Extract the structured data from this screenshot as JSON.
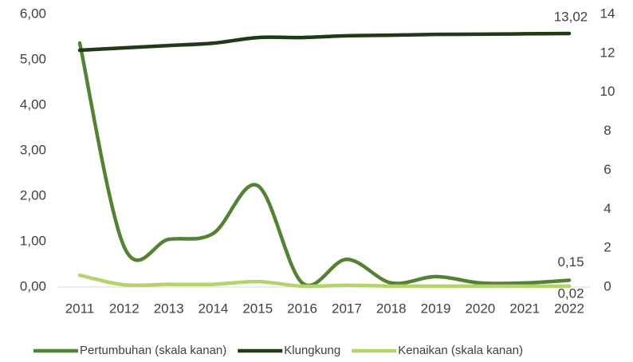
{
  "chart_data": {
    "type": "line",
    "categories": [
      "2011",
      "2012",
      "2013",
      "2014",
      "2015",
      "2016",
      "2017",
      "2018",
      "2019",
      "2020",
      "2021",
      "2022"
    ],
    "series": [
      {
        "name": "Pertumbuhan (skala kanan)",
        "color": "#548235",
        "axis": "y",
        "values": [
          5.37,
          0.88,
          1.05,
          1.18,
          2.23,
          0.09,
          0.61,
          0.09,
          0.23,
          0.09,
          0.09,
          0.15
        ],
        "value_labels": [
          null,
          null,
          null,
          null,
          null,
          null,
          null,
          null,
          null,
          null,
          null,
          "0,15"
        ]
      },
      {
        "name": "Klungkung",
        "color": "#1f3a17",
        "axis": "y2",
        "values": [
          12.16,
          12.28,
          12.4,
          12.52,
          12.81,
          12.81,
          12.9,
          12.93,
          12.97,
          12.98,
          13.0,
          13.02
        ],
        "value_labels": [
          null,
          null,
          null,
          null,
          null,
          null,
          null,
          null,
          null,
          null,
          null,
          "13,02"
        ]
      },
      {
        "name": "Kenaikan (skala kanan)",
        "color": "#b5d36b",
        "axis": "y",
        "values": [
          0.26,
          0.05,
          0.06,
          0.06,
          0.12,
          0.02,
          0.04,
          0.02,
          0.02,
          0.02,
          0.02,
          0.02
        ],
        "value_labels": [
          null,
          null,
          null,
          null,
          null,
          null,
          null,
          null,
          null,
          null,
          null,
          "0,02"
        ]
      }
    ],
    "ylim": [
      0,
      6
    ],
    "yticks": [
      {
        "value": 0,
        "label": "0,00"
      },
      {
        "value": 1,
        "label": "1,00"
      },
      {
        "value": 2,
        "label": "2,00"
      },
      {
        "value": 3,
        "label": "3,00"
      },
      {
        "value": 4,
        "label": "4,00"
      },
      {
        "value": 5,
        "label": "5,00"
      },
      {
        "value": 6,
        "label": "6,00"
      }
    ],
    "y2lim": [
      0,
      14
    ],
    "y2ticks": [
      0,
      2,
      4,
      6,
      8,
      10,
      12,
      14
    ],
    "grid": false,
    "legend": "bottom"
  }
}
